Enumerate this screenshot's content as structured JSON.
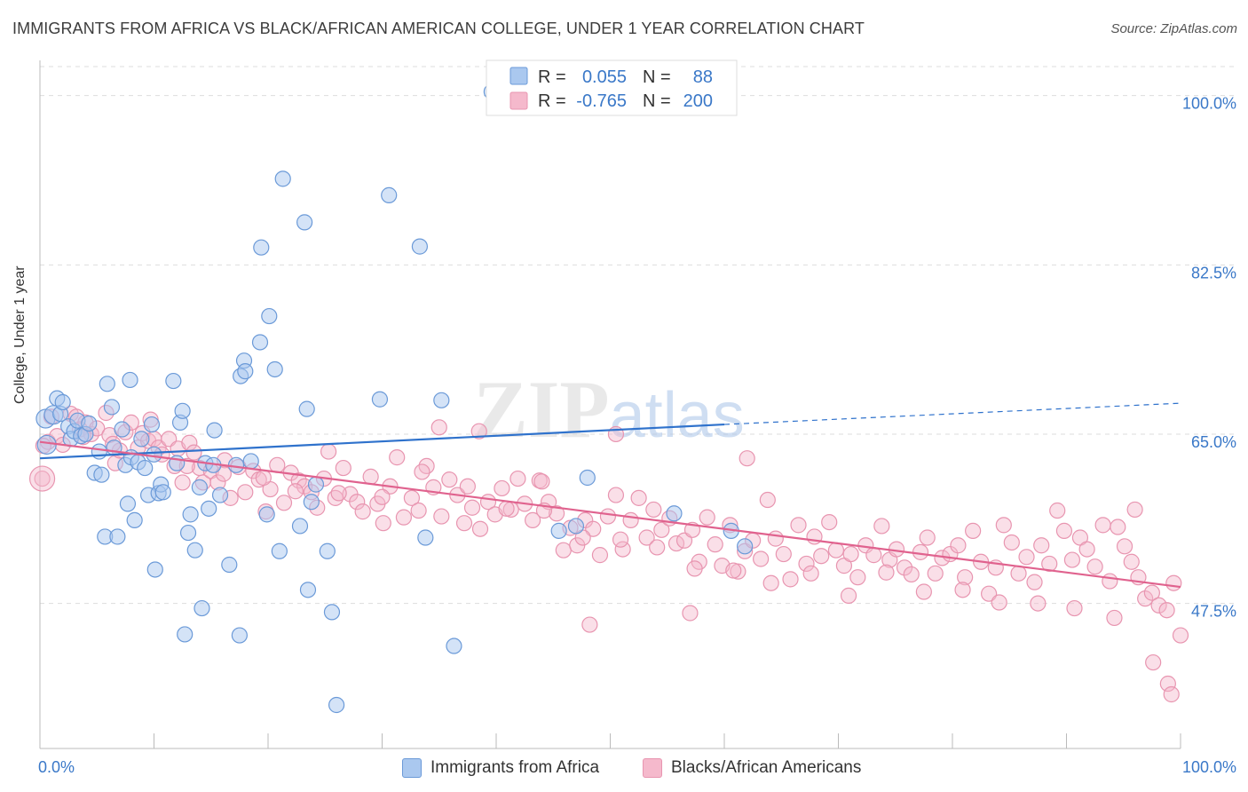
{
  "title": "IMMIGRANTS FROM AFRICA VS BLACK/AFRICAN AMERICAN COLLEGE, UNDER 1 YEAR CORRELATION CHART",
  "source": "Source: ZipAtlas.com",
  "watermark_bold": "ZIP",
  "watermark_light": "atlas",
  "legend_top": {
    "row1": {
      "r_label": "R =",
      "r_value": "0.055",
      "n_label": "N =",
      "n_value": "88"
    },
    "row2": {
      "r_label": "R =",
      "r_value": "-0.765",
      "n_label": "N =",
      "n_value": "200"
    }
  },
  "colors": {
    "blue_fill": "#aac8ef",
    "blue_stroke": "#6b9ad8",
    "blue_line": "#2f72cc",
    "pink_fill": "#f5b9cc",
    "pink_stroke": "#e895b0",
    "pink_line": "#e0628e",
    "tick_text": "#3a78c8",
    "grid": "#dddddd"
  },
  "chart_data": {
    "type": "scatter",
    "xlabel": "",
    "ylabel": "College, Under 1 year",
    "x_tick_labels": [
      "0.0%",
      "100.0%"
    ],
    "y_tick_labels": [
      "100.0%",
      "82.5%",
      "65.0%",
      "47.5%"
    ],
    "y_ticks": [
      100,
      82.5,
      65,
      47.5
    ],
    "xlim": [
      0,
      100
    ],
    "ylim": [
      32.5,
      103.0
    ],
    "grid": true,
    "legend_placement": "bottom",
    "series": [
      {
        "name": "Immigrants from Africa",
        "trend": {
          "x0": 0,
          "y0": 62.5,
          "x1": 60,
          "y1": 66.0,
          "dash_x1": 100,
          "dash_y1": 68.2
        },
        "points": [
          [
            0.5,
            66.6
          ],
          [
            0.6,
            63.9
          ],
          [
            1.2,
            67.0
          ],
          [
            1.5,
            68.7
          ],
          [
            1.8,
            67.1
          ],
          [
            2.0,
            68.3
          ],
          [
            2.5,
            65.8
          ],
          [
            2.7,
            64.5
          ],
          [
            3.0,
            65.3
          ],
          [
            3.3,
            66.4
          ],
          [
            3.6,
            64.8
          ],
          [
            4.0,
            65.0
          ],
          [
            4.3,
            66.1
          ],
          [
            4.8,
            61.0
          ],
          [
            5.2,
            63.2
          ],
          [
            5.4,
            60.8
          ],
          [
            5.7,
            54.4
          ],
          [
            5.9,
            70.2
          ],
          [
            6.3,
            67.8
          ],
          [
            6.5,
            63.6
          ],
          [
            6.8,
            54.4
          ],
          [
            7.2,
            65.5
          ],
          [
            7.5,
            61.8
          ],
          [
            7.7,
            57.8
          ],
          [
            7.9,
            70.6
          ],
          [
            8.0,
            62.6
          ],
          [
            8.3,
            56.1
          ],
          [
            8.6,
            62.1
          ],
          [
            8.9,
            64.5
          ],
          [
            9.2,
            61.5
          ],
          [
            9.5,
            58.7
          ],
          [
            9.8,
            66.0
          ],
          [
            10.0,
            62.9
          ],
          [
            10.1,
            51.0
          ],
          [
            10.4,
            58.9
          ],
          [
            10.6,
            59.8
          ],
          [
            10.8,
            59.0
          ],
          [
            11.7,
            70.5
          ],
          [
            12.0,
            62.0
          ],
          [
            12.3,
            66.2
          ],
          [
            12.5,
            67.4
          ],
          [
            12.7,
            44.3
          ],
          [
            13.0,
            54.8
          ],
          [
            13.2,
            56.7
          ],
          [
            13.6,
            53.0
          ],
          [
            14.0,
            59.5
          ],
          [
            14.2,
            47.0
          ],
          [
            14.5,
            62.0
          ],
          [
            14.8,
            57.3
          ],
          [
            15.2,
            61.8
          ],
          [
            15.3,
            65.4
          ],
          [
            15.8,
            58.7
          ],
          [
            16.6,
            51.5
          ],
          [
            17.2,
            61.8
          ],
          [
            17.5,
            44.2
          ],
          [
            17.6,
            71.0
          ],
          [
            17.9,
            72.6
          ],
          [
            18.0,
            71.5
          ],
          [
            18.5,
            62.2
          ],
          [
            19.3,
            74.5
          ],
          [
            19.4,
            84.3
          ],
          [
            19.9,
            56.7
          ],
          [
            20.1,
            77.2
          ],
          [
            20.6,
            71.7
          ],
          [
            21.0,
            52.9
          ],
          [
            21.3,
            91.4
          ],
          [
            22.8,
            55.5
          ],
          [
            23.2,
            86.9
          ],
          [
            23.4,
            67.6
          ],
          [
            23.5,
            48.9
          ],
          [
            23.8,
            58.0
          ],
          [
            24.2,
            59.8
          ],
          [
            25.2,
            52.9
          ],
          [
            25.6,
            46.6
          ],
          [
            26.0,
            37.0
          ],
          [
            29.8,
            68.6
          ],
          [
            30.6,
            89.7
          ],
          [
            33.3,
            84.4
          ],
          [
            33.8,
            54.3
          ],
          [
            35.2,
            68.5
          ],
          [
            36.3,
            43.1
          ],
          [
            39.6,
            100.4
          ],
          [
            45.5,
            55.0
          ],
          [
            47.0,
            55.5
          ],
          [
            48.0,
            60.5
          ],
          [
            55.6,
            56.8
          ],
          [
            60.6,
            55.0
          ],
          [
            61.8,
            53.4
          ]
        ]
      },
      {
        "name": "Blacks/African Americans",
        "trend": {
          "x0": 0,
          "y0": 64.2,
          "x1": 100,
          "y1": 49.2
        },
        "points": [
          [
            0.2,
            60.4
          ],
          [
            0.7,
            64.2
          ],
          [
            1.0,
            66.8
          ],
          [
            1.5,
            64.8
          ],
          [
            2.0,
            63.9
          ],
          [
            2.7,
            67.1
          ],
          [
            3.2,
            66.8
          ],
          [
            3.5,
            65.5
          ],
          [
            4.0,
            66.2
          ],
          [
            4.5,
            65.0
          ],
          [
            5.0,
            65.6
          ],
          [
            5.8,
            67.2
          ],
          [
            6.1,
            64.9
          ],
          [
            6.6,
            62.0
          ],
          [
            7.0,
            63.3
          ],
          [
            7.5,
            65.2
          ],
          [
            8.0,
            66.2
          ],
          [
            8.6,
            63.6
          ],
          [
            9.0,
            65.1
          ],
          [
            9.5,
            64.3
          ],
          [
            10.0,
            64.5
          ],
          [
            10.4,
            63.6
          ],
          [
            10.7,
            62.9
          ],
          [
            11.3,
            64.5
          ],
          [
            11.8,
            61.7
          ],
          [
            12.1,
            63.5
          ],
          [
            12.5,
            60.0
          ],
          [
            13.1,
            64.1
          ],
          [
            13.5,
            63.1
          ],
          [
            14.0,
            61.5
          ],
          [
            14.3,
            60.0
          ],
          [
            15.0,
            61.2
          ],
          [
            15.6,
            60.0
          ],
          [
            16.2,
            62.3
          ],
          [
            16.7,
            58.4
          ],
          [
            17.4,
            61.6
          ],
          [
            18.0,
            59.0
          ],
          [
            18.7,
            61.2
          ],
          [
            19.2,
            60.3
          ],
          [
            19.8,
            57.0
          ],
          [
            20.2,
            59.3
          ],
          [
            20.8,
            61.8
          ],
          [
            21.4,
            57.9
          ],
          [
            22.0,
            61.0
          ],
          [
            22.7,
            60.2
          ],
          [
            23.2,
            59.6
          ],
          [
            23.8,
            59.0
          ],
          [
            24.3,
            57.4
          ],
          [
            24.9,
            60.4
          ],
          [
            25.3,
            63.2
          ],
          [
            25.9,
            58.4
          ],
          [
            26.6,
            61.5
          ],
          [
            27.2,
            58.8
          ],
          [
            27.8,
            58.0
          ],
          [
            28.3,
            57.0
          ],
          [
            29.0,
            60.6
          ],
          [
            29.6,
            57.8
          ],
          [
            30.1,
            55.8
          ],
          [
            30.7,
            59.6
          ],
          [
            31.3,
            62.6
          ],
          [
            31.9,
            56.4
          ],
          [
            32.6,
            58.4
          ],
          [
            33.2,
            57.1
          ],
          [
            33.9,
            61.7
          ],
          [
            34.5,
            59.5
          ],
          [
            35.2,
            56.5
          ],
          [
            35.9,
            60.3
          ],
          [
            36.6,
            58.7
          ],
          [
            37.2,
            55.8
          ],
          [
            37.9,
            57.4
          ],
          [
            38.6,
            55.2
          ],
          [
            39.3,
            58.0
          ],
          [
            39.9,
            56.7
          ],
          [
            40.5,
            59.4
          ],
          [
            41.3,
            57.2
          ],
          [
            41.9,
            60.4
          ],
          [
            42.5,
            57.8
          ],
          [
            43.2,
            56.1
          ],
          [
            43.8,
            60.2
          ],
          [
            44.6,
            58.0
          ],
          [
            45.3,
            56.8
          ],
          [
            45.9,
            53.0
          ],
          [
            46.5,
            55.3
          ],
          [
            47.1,
            53.5
          ],
          [
            47.8,
            56.1
          ],
          [
            48.5,
            55.2
          ],
          [
            49.1,
            52.5
          ],
          [
            49.8,
            56.5
          ],
          [
            50.5,
            58.7
          ],
          [
            51.1,
            53.1
          ],
          [
            51.8,
            56.1
          ],
          [
            52.5,
            58.4
          ],
          [
            53.2,
            54.3
          ],
          [
            53.8,
            57.2
          ],
          [
            54.5,
            55.1
          ],
          [
            55.2,
            56.3
          ],
          [
            55.8,
            53.7
          ],
          [
            56.5,
            54.0
          ],
          [
            57.2,
            55.1
          ],
          [
            57.8,
            51.8
          ],
          [
            58.5,
            56.4
          ],
          [
            59.2,
            53.6
          ],
          [
            59.8,
            51.4
          ],
          [
            60.5,
            55.6
          ],
          [
            61.2,
            50.8
          ],
          [
            61.8,
            52.9
          ],
          [
            62.5,
            54.0
          ],
          [
            63.2,
            52.1
          ],
          [
            63.8,
            58.2
          ],
          [
            64.5,
            54.2
          ],
          [
            65.2,
            52.6
          ],
          [
            65.8,
            50.0
          ],
          [
            66.5,
            55.6
          ],
          [
            67.2,
            51.6
          ],
          [
            67.9,
            54.4
          ],
          [
            68.5,
            52.4
          ],
          [
            69.2,
            55.9
          ],
          [
            69.8,
            53.0
          ],
          [
            70.5,
            51.4
          ],
          [
            71.1,
            52.6
          ],
          [
            71.7,
            50.2
          ],
          [
            72.4,
            53.5
          ],
          [
            73.1,
            52.5
          ],
          [
            73.8,
            55.5
          ],
          [
            74.5,
            52.0
          ],
          [
            75.1,
            53.1
          ],
          [
            75.8,
            51.2
          ],
          [
            76.4,
            50.5
          ],
          [
            77.2,
            52.8
          ],
          [
            77.8,
            54.3
          ],
          [
            78.5,
            50.6
          ],
          [
            79.1,
            52.2
          ],
          [
            79.8,
            52.6
          ],
          [
            80.5,
            53.5
          ],
          [
            81.1,
            50.2
          ],
          [
            81.8,
            55.0
          ],
          [
            82.5,
            51.8
          ],
          [
            83.2,
            48.5
          ],
          [
            83.8,
            51.2
          ],
          [
            84.5,
            55.6
          ],
          [
            85.2,
            53.8
          ],
          [
            85.8,
            50.6
          ],
          [
            86.5,
            52.3
          ],
          [
            87.2,
            49.7
          ],
          [
            87.8,
            53.5
          ],
          [
            88.5,
            51.6
          ],
          [
            89.2,
            57.1
          ],
          [
            89.8,
            55.0
          ],
          [
            90.5,
            52.0
          ],
          [
            91.2,
            54.3
          ],
          [
            91.8,
            53.1
          ],
          [
            92.5,
            51.3
          ],
          [
            93.2,
            55.6
          ],
          [
            93.8,
            49.8
          ],
          [
            94.5,
            55.4
          ],
          [
            95.1,
            53.4
          ],
          [
            95.7,
            51.8
          ],
          [
            96.3,
            50.2
          ],
          [
            96.9,
            48.0
          ],
          [
            97.5,
            48.6
          ],
          [
            98.1,
            47.3
          ],
          [
            98.8,
            46.8
          ],
          [
            99.4,
            49.6
          ],
          [
            100.0,
            44.2
          ],
          [
            0.3,
            63.8
          ],
          [
            3.8,
            64.7
          ],
          [
            6.4,
            64.0
          ],
          [
            9.7,
            66.5
          ],
          [
            12.9,
            61.7
          ],
          [
            16.1,
            60.9
          ],
          [
            19.6,
            60.5
          ],
          [
            22.4,
            59.1
          ],
          [
            26.2,
            58.9
          ],
          [
            30.0,
            58.5
          ],
          [
            33.5,
            61.1
          ],
          [
            37.5,
            59.6
          ],
          [
            40.9,
            57.3
          ],
          [
            44.2,
            57.1
          ],
          [
            47.6,
            54.3
          ],
          [
            50.9,
            54.1
          ],
          [
            54.1,
            53.3
          ],
          [
            57.4,
            51.1
          ],
          [
            60.8,
            50.9
          ],
          [
            64.1,
            49.6
          ],
          [
            67.6,
            50.6
          ],
          [
            70.9,
            48.3
          ],
          [
            74.2,
            50.7
          ],
          [
            77.5,
            48.7
          ],
          [
            80.9,
            48.9
          ],
          [
            84.1,
            47.6
          ],
          [
            87.5,
            47.5
          ],
          [
            90.7,
            47.0
          ],
          [
            94.2,
            46.0
          ],
          [
            97.6,
            41.4
          ],
          [
            98.9,
            39.2
          ],
          [
            99.2,
            38.1
          ],
          [
            50.5,
            65.0
          ],
          [
            44.0,
            60.1
          ],
          [
            38.5,
            65.3
          ],
          [
            35.0,
            65.7
          ],
          [
            48.2,
            45.3
          ],
          [
            57.0,
            46.5
          ],
          [
            62.0,
            62.5
          ],
          [
            96.0,
            57.2
          ]
        ]
      }
    ]
  }
}
